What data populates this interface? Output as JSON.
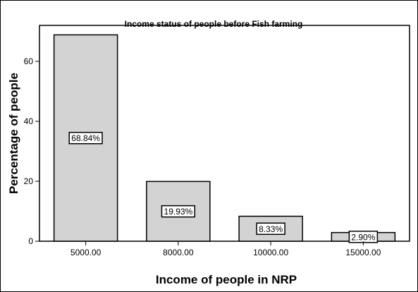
{
  "chart_data": {
    "type": "bar",
    "title": "Income status of people before Fish farming",
    "xlabel": "Income of people in NRP",
    "ylabel": "Percentage of people",
    "categories": [
      "5000.00",
      "8000.00",
      "10000.00",
      "15000.00"
    ],
    "values": [
      68.84,
      19.93,
      8.33,
      2.9
    ],
    "data_labels": [
      "68.84%",
      "19.93%",
      "8.33%",
      "2.90%"
    ],
    "ylim": [
      0,
      72
    ],
    "yticks": [
      0,
      20,
      40,
      60
    ],
    "grid": false,
    "bar_color": "#d3d3d3",
    "edge_color": "#000000"
  }
}
